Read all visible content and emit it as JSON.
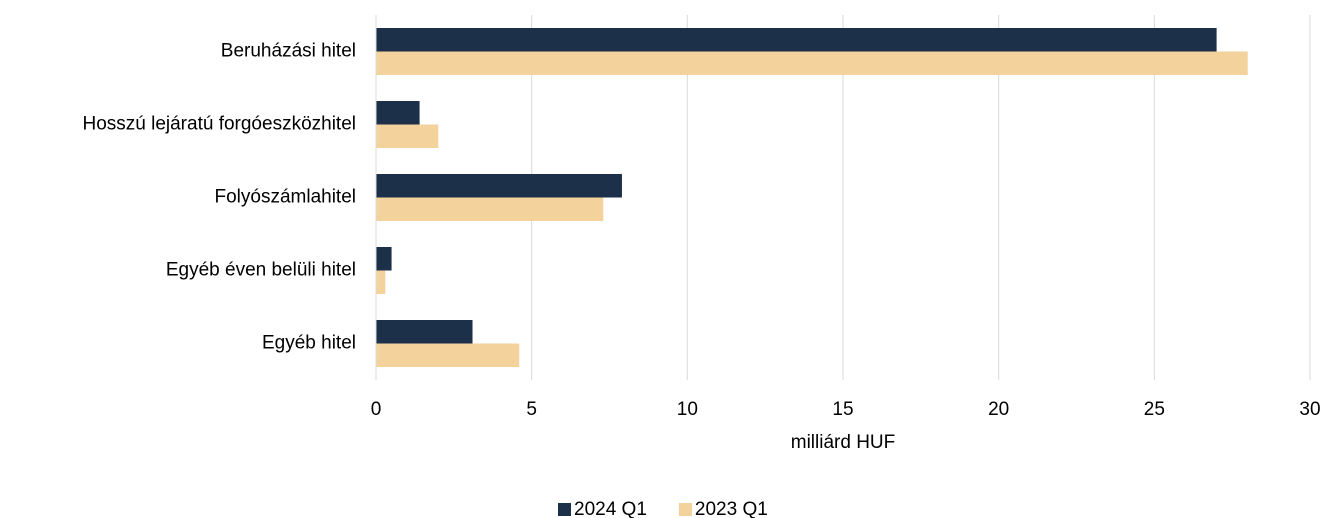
{
  "chart_data": {
    "type": "hbar",
    "categories": [
      "Beruházási hitel",
      "Hosszú lejáratú forgóeszközhitel",
      "Folyószámlahitel",
      "Egyéb éven belüli hitel",
      "Egyéb hitel"
    ],
    "series": [
      {
        "name": "2024 Q1",
        "color": "#1c3049",
        "values": [
          27.0,
          1.4,
          7.9,
          0.5,
          3.1
        ]
      },
      {
        "name": "2023 Q1",
        "color": "#f4d29c",
        "values": [
          28.0,
          2.0,
          7.3,
          0.3,
          4.6
        ]
      }
    ],
    "xlabel": "milliárd HUF",
    "xlim": [
      0,
      30
    ],
    "xticks": [
      0,
      5,
      10,
      15,
      20,
      25,
      30
    ],
    "grid": true,
    "legend": "bottom"
  }
}
